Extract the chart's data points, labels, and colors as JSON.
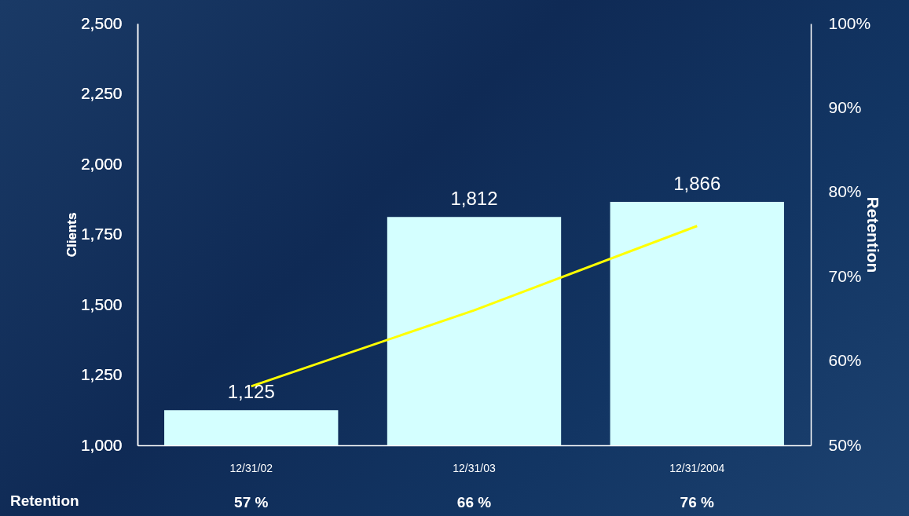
{
  "chart_data": {
    "type": "bar",
    "ylabel": "Clients",
    "y2label": "Retention",
    "categories": [
      "12/31/02",
      "12/31/03",
      "12/31/2004"
    ],
    "series": [
      {
        "color": "#d4ffff",
        "values": [
          1125,
          1812,
          1866
        ],
        "value_labels": [
          "1,125",
          "1,812",
          "1,866"
        ]
      },
      {
        "type": "line",
        "axis": "y2",
        "color": "#ffff00",
        "values": [
          57,
          66,
          76
        ],
        "value_labels": [
          "57 %",
          "66 %",
          "76 %"
        ]
      }
    ],
    "ylim": [
      1000,
      2500
    ],
    "yticks": [
      {
        "value": 1000,
        "label": "1,000"
      },
      {
        "value": 1250,
        "label": "1,250"
      },
      {
        "value": 1500,
        "label": "1,500"
      },
      {
        "value": 1750,
        "label": "1,750"
      },
      {
        "value": 2000,
        "label": "2,000"
      },
      {
        "value": 2250,
        "label": "2,250"
      },
      {
        "value": 2500,
        "label": "2,500"
      }
    ],
    "y2lim": [
      50,
      100
    ],
    "y2ticks": [
      {
        "value": 50,
        "label": "50%"
      },
      {
        "value": 60,
        "label": "60%"
      },
      {
        "value": 70,
        "label": "70%"
      },
      {
        "value": 80,
        "label": "80%"
      },
      {
        "value": 90,
        "label": "90%"
      },
      {
        "value": 100,
        "label": "100%"
      }
    ],
    "annotations": [
      "Retention"
    ]
  }
}
